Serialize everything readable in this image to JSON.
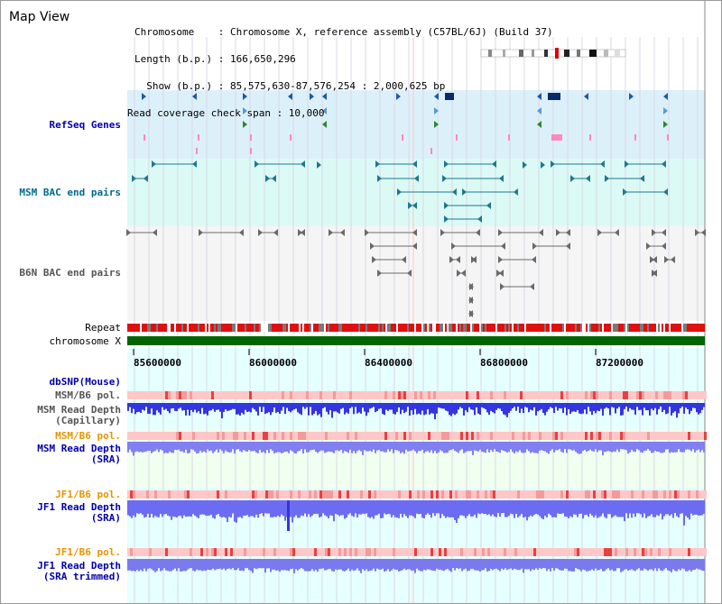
{
  "view": {
    "title": "Map View"
  },
  "header": {
    "chromosome_line": "Chromosome    : Chromosome X, reference assembly (C57BL/6J) (Build 37)",
    "length_line": "Length (b.p.) : 166,650,296",
    "show_line": "  Show (b.p.) : 85,575,630-87,576,254 : 2,000,625 bp",
    "span_line": "Read coverage check span : 10,000"
  },
  "tracks": {
    "refseq": {
      "label": "RefSeq Genes"
    },
    "msm_bac": {
      "label": "MSM BAC end pairs"
    },
    "b6n_bac": {
      "label": "B6N BAC end pairs"
    },
    "repeat": {
      "label": "Repeat"
    },
    "chromosome": {
      "label": "chromosome X"
    },
    "dbsnp": {
      "label": "dbSNP(Mouse)"
    },
    "msm_b6_pol_1": {
      "label": "MSM/B6 pol."
    },
    "msm_depth_cap": {
      "label_line1": "MSM Read Depth",
      "label_line2": "(Capillary)"
    },
    "msm_b6_pol_2": {
      "label": "MSM/B6 pol."
    },
    "msm_depth_sra": {
      "label_line1": "MSM Read Depth",
      "label_line2": "(SRA)"
    },
    "jf1_b6_pol_1": {
      "label": "JF1/B6 pol."
    },
    "jf1_depth_sra": {
      "label_line1": "JF1 Read Depth",
      "label_line2": "(SRA)"
    },
    "jf1_b6_pol_2": {
      "label": "JF1/B6 pol."
    },
    "jf1_depth_trim": {
      "label_line1": "JF1 Read Depth",
      "label_line2": "(SRA trimmed)"
    }
  },
  "axis": {
    "ticks": [
      {
        "label": "85600000",
        "value": 85600000
      },
      {
        "label": "86000000",
        "value": 86000000
      },
      {
        "label": "86400000",
        "value": 86400000
      },
      {
        "label": "86800000",
        "value": 86800000
      },
      {
        "label": "87200000",
        "value": 87200000
      }
    ]
  },
  "colors": {
    "refseq_bg": "#dcf0fa",
    "msm_bac_bg": "#dcfaf5",
    "b6n_bac_bg": "#f5f5f5",
    "green_bg": "#f0fff0",
    "cyan_bg": "#e6ffff",
    "label_blue": "#0000aa",
    "label_teal": "#006b8a",
    "label_gray": "#555555",
    "label_orange": "#e69500",
    "chrom_green": "#006400",
    "depth_blue": "#6c6cf2",
    "depth_dark": "#3434e0"
  }
}
